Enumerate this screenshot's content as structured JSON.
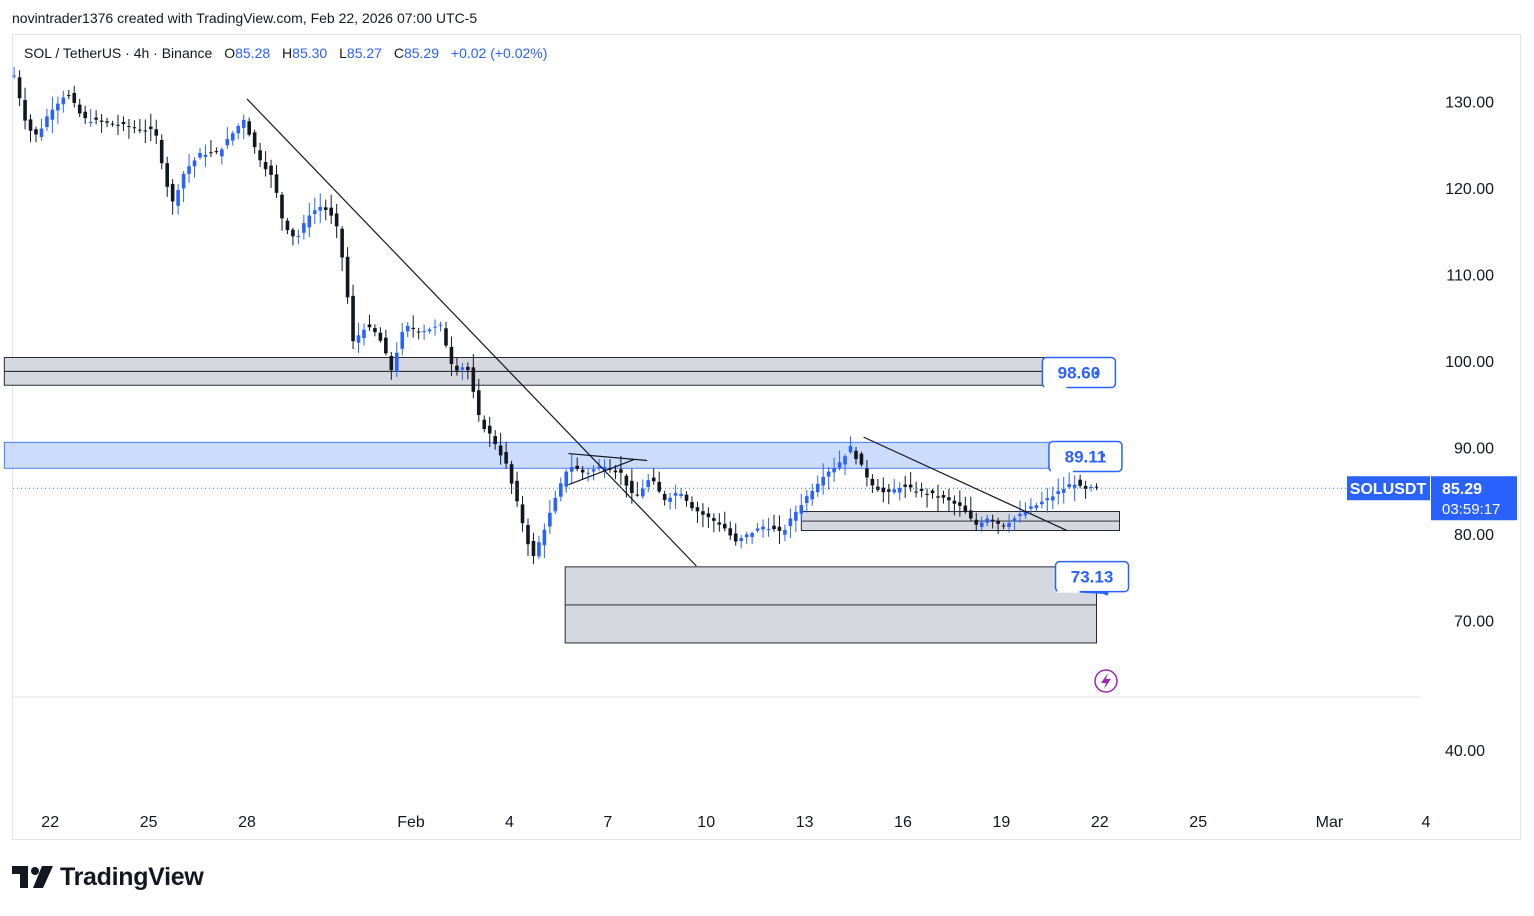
{
  "caption": "novintrader1376 created with TradingView.com, Feb 22, 2026 07:00 UTC-5",
  "legend": {
    "symbol": "SOL / TetherUS · 4h · Binance",
    "open_label": "O",
    "open": "85.28",
    "high_label": "H",
    "high": "85.30",
    "low_label": "L",
    "low": "85.27",
    "close_label": "C",
    "close": "85.29",
    "change": "+0.02 (+0.02%)"
  },
  "brand": "TradingView",
  "colors": {
    "up": "#2962ff",
    "down": "#131722",
    "zone_gray": "#d1d4dc",
    "zone_blue": "#bbd0fb",
    "accent": "#2962ff",
    "lightning": "#9c27b0"
  },
  "chart_data": {
    "type": "candlestick",
    "symbol": "SOLUSDT",
    "timeframe": "4h",
    "y_axis": {
      "ticks": [
        {
          "value": 130,
          "label": "130.00"
        },
        {
          "value": 120,
          "label": "120.00"
        },
        {
          "value": 110,
          "label": "110.00"
        },
        {
          "value": 100,
          "label": "100.00"
        },
        {
          "value": 90,
          "label": "90.00"
        },
        {
          "value": 80,
          "label": "80.00"
        },
        {
          "value": 70,
          "label": "70.00"
        }
      ],
      "lower_pane_tick": {
        "value": 40,
        "label": "40.00"
      }
    },
    "x_axis": {
      "ticks": [
        {
          "day": -10,
          "label": "22"
        },
        {
          "day": -7,
          "label": "25"
        },
        {
          "day": -4,
          "label": "28"
        },
        {
          "day": 1,
          "label": "Feb"
        },
        {
          "day": 4,
          "label": "4"
        },
        {
          "day": 7,
          "label": "7"
        },
        {
          "day": 10,
          "label": "10"
        },
        {
          "day": 13,
          "label": "13"
        },
        {
          "day": 16,
          "label": "16"
        },
        {
          "day": 19,
          "label": "19"
        },
        {
          "day": 22,
          "label": "22"
        },
        {
          "day": 25,
          "label": "25"
        },
        {
          "day": 29,
          "label": "Mar"
        },
        {
          "day": 32,
          "label": "4"
        }
      ]
    },
    "price_path": [
      [
        -11.1,
        133
      ],
      [
        -10.7,
        127
      ],
      [
        -10.4,
        126
      ],
      [
        -10.0,
        129
      ],
      [
        -9.5,
        131
      ],
      [
        -9.0,
        128
      ],
      [
        -8.3,
        127.5
      ],
      [
        -7.5,
        127
      ],
      [
        -6.8,
        126.5
      ],
      [
        -6.3,
        118
      ],
      [
        -5.9,
        122
      ],
      [
        -5.4,
        124
      ],
      [
        -4.9,
        124
      ],
      [
        -4.5,
        126
      ],
      [
        -4.1,
        128
      ],
      [
        -3.7,
        124
      ],
      [
        -3.2,
        121
      ],
      [
        -2.9,
        116
      ],
      [
        -2.5,
        114
      ],
      [
        -2.1,
        117
      ],
      [
        -1.7,
        118
      ],
      [
        -1.3,
        116
      ],
      [
        -1.0,
        110
      ],
      [
        -0.8,
        102
      ],
      [
        -0.4,
        104
      ],
      [
        0.0,
        103
      ],
      [
        0.4,
        99
      ],
      [
        0.8,
        104
      ],
      [
        1.3,
        103.5
      ],
      [
        1.9,
        104
      ],
      [
        2.3,
        99
      ],
      [
        2.7,
        99.5
      ],
      [
        3.1,
        93
      ],
      [
        3.5,
        91
      ],
      [
        3.9,
        88
      ],
      [
        4.2,
        84
      ],
      [
        4.5,
        80
      ],
      [
        4.7,
        77
      ],
      [
        5.0,
        80
      ],
      [
        5.4,
        84
      ],
      [
        5.8,
        88
      ],
      [
        6.3,
        87
      ],
      [
        6.9,
        88
      ],
      [
        7.4,
        87
      ],
      [
        7.8,
        84
      ],
      [
        8.3,
        86.5
      ],
      [
        8.7,
        84
      ],
      [
        9.2,
        85
      ],
      [
        9.6,
        83
      ],
      [
        10.0,
        82
      ],
      [
        10.5,
        81
      ],
      [
        10.9,
        79
      ],
      [
        11.3,
        80
      ],
      [
        11.8,
        81
      ],
      [
        12.3,
        80
      ],
      [
        12.8,
        83
      ],
      [
        13.2,
        85
      ],
      [
        13.6,
        87
      ],
      [
        14.0,
        88
      ],
      [
        14.4,
        90
      ],
      [
        14.7,
        88
      ],
      [
        15.0,
        86
      ],
      [
        15.5,
        84.5
      ],
      [
        15.9,
        85.5
      ],
      [
        16.4,
        85
      ],
      [
        16.9,
        84.5
      ],
      [
        17.3,
        84
      ],
      [
        17.8,
        83
      ],
      [
        18.2,
        81
      ],
      [
        18.6,
        82
      ],
      [
        19.0,
        81
      ],
      [
        19.5,
        82
      ],
      [
        19.9,
        83
      ],
      [
        20.4,
        84
      ],
      [
        20.8,
        85
      ],
      [
        21.2,
        86
      ],
      [
        21.5,
        85
      ],
      [
        21.8,
        85.3
      ],
      [
        22.0,
        85.29
      ]
    ],
    "last_price": {
      "symbol_label": "SOLUSDT",
      "price": "85.29",
      "countdown": "03:59:17"
    },
    "zones": [
      {
        "name": "resistance-zone-100",
        "style": "gray",
        "day_start": -11.4,
        "day_end": 21.9,
        "top": 100.4,
        "bottom": 97.2,
        "mid": 98.8
      },
      {
        "name": "resistance-zone-90",
        "style": "blue",
        "day_start": -11.4,
        "day_end": 21.9,
        "top": 90.6,
        "bottom": 87.6
      },
      {
        "name": "support-zone-82",
        "style": "gray",
        "day_start": 12.9,
        "day_end": 22.6,
        "top": 82.6,
        "bottom": 80.4,
        "mid": 81.5
      },
      {
        "name": "support-zone-72",
        "style": "gray",
        "day_start": 5.7,
        "day_end": 21.9,
        "top": 76.2,
        "bottom": 67.4,
        "mid": 71.8
      }
    ],
    "trendlines": [
      {
        "name": "major-downtrend-line",
        "from": [
          -4.0,
          130.3
        ],
        "to": [
          9.7,
          76.3
        ]
      },
      {
        "name": "triangle-upper-line",
        "from": [
          5.8,
          89.3
        ],
        "to": [
          8.2,
          88.5
        ]
      },
      {
        "name": "triangle-lower-line",
        "from": [
          5.8,
          85.7
        ],
        "to": [
          7.8,
          88.6
        ]
      },
      {
        "name": "short-downtrend-line",
        "from": [
          14.8,
          91.2
        ],
        "to": [
          21.0,
          80.4
        ]
      }
    ],
    "price_labels": [
      {
        "text": "98.60",
        "box_day": 20.25,
        "box_price": 100.4,
        "point_day": 21.9,
        "point_price": 98.6
      },
      {
        "text": "89.11",
        "box_day": 20.45,
        "box_price": 90.7,
        "point_day": 22.1,
        "point_price": 89.11
      },
      {
        "text": "73.13",
        "box_day": 20.65,
        "box_price": 76.8,
        "point_day": 22.2,
        "point_price": 73.13
      }
    ]
  }
}
